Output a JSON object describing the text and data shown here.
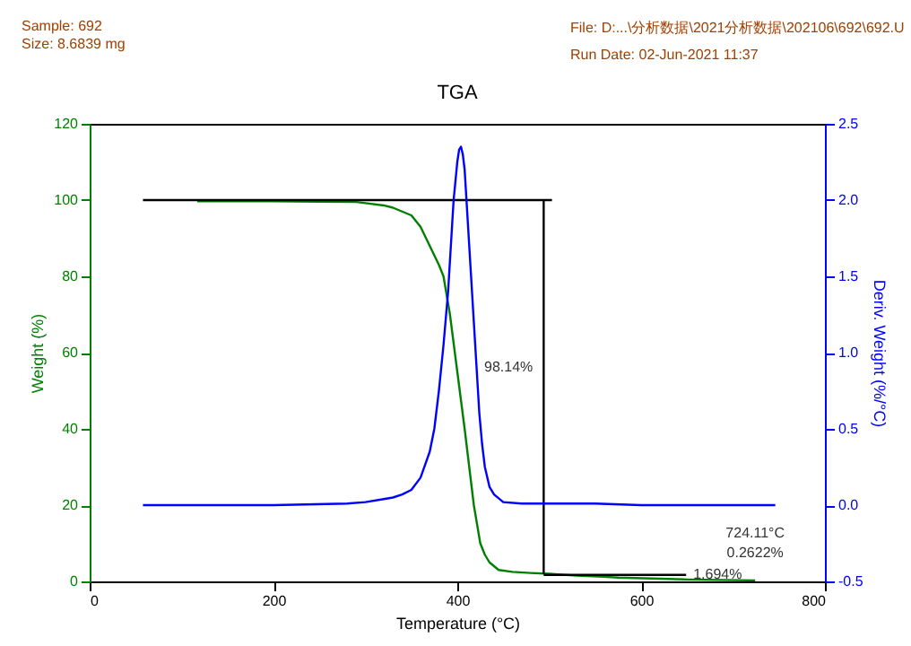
{
  "chart_data": {
    "type": "line",
    "title": "TGA",
    "xlabel": "Temperature (°C)",
    "ylabel": "Weight (%)",
    "y2label": "Deriv. Weight (%/°C)",
    "xlim": [
      0,
      800
    ],
    "xticks": [
      0,
      200,
      400,
      600,
      800
    ],
    "ylim": [
      0,
      120
    ],
    "yticks": [
      0,
      20,
      40,
      60,
      80,
      100,
      120
    ],
    "y2lim": [
      -0.5,
      2.5
    ],
    "y2ticks": [
      {
        "value": -0.5,
        "label": "-0.5"
      },
      {
        "value": 0,
        "label": "0.0"
      },
      {
        "value": 0.5,
        "label": "0.5"
      },
      {
        "value": 1,
        "label": "1.0"
      },
      {
        "value": 1.5,
        "label": "1.5"
      },
      {
        "value": 2,
        "label": "2.0"
      },
      {
        "value": 2.5,
        "label": "2.5"
      }
    ],
    "grid": false,
    "series": [
      {
        "color": "#008000",
        "x": [
          117,
          200,
          250,
          290,
          300,
          320,
          330,
          340,
          350,
          360,
          370,
          380,
          385,
          392,
          400,
          408,
          413,
          418,
          425,
          430,
          435,
          445,
          460,
          480,
          500,
          530,
          560,
          575,
          650,
          724.11
        ],
        "values": [
          99.7,
          99.7,
          99.6,
          99.5,
          99.2,
          98.6,
          98,
          97,
          96,
          93,
          88,
          83,
          80,
          70,
          55,
          40,
          30,
          20,
          10,
          7,
          5,
          3,
          2.5,
          2.2,
          2,
          1.5,
          1.2,
          1,
          0.5,
          0.2622
        ]
      },
      {
        "color": "#0000ff",
        "axis": "y2",
        "x": [
          58,
          100,
          200,
          280,
          300,
          320,
          330,
          340,
          350,
          360,
          370,
          375,
          380,
          385,
          390,
          393,
          396,
          400,
          402,
          404,
          406,
          408,
          410,
          412,
          415,
          418,
          421,
          424,
          427,
          430,
          435,
          440,
          450,
          470,
          500,
          550,
          600,
          650,
          700,
          746
        ],
        "values": [
          0,
          0,
          0,
          0.01,
          0.02,
          0.04,
          0.05,
          0.07,
          0.1,
          0.18,
          0.35,
          0.5,
          0.75,
          1.05,
          1.4,
          1.7,
          2.0,
          2.25,
          2.33,
          2.35,
          2.3,
          2.2,
          2.0,
          1.8,
          1.5,
          1.2,
          0.9,
          0.6,
          0.4,
          0.25,
          0.12,
          0.07,
          0.02,
          0.01,
          0.01,
          0.01,
          0,
          0,
          0,
          0
        ]
      },
      {
        "color": "#000000",
        "x": [
          58,
          503
        ],
        "values": [
          100,
          100
        ]
      },
      {
        "color": "#000000",
        "x": [
          494,
          494
        ],
        "values": [
          100,
          1.9
        ]
      },
      {
        "color": "#000000",
        "x": [
          494,
          649
        ],
        "values": [
          1.7,
          1.7
        ]
      }
    ],
    "annotations": [
      "Sample: 692",
      "Size: 8.6839 mg",
      "File: D:...\\分析数据\\2021分析数据\\202106\\692\\692.U",
      "Run Date: 02-Jun-2021 11:37",
      {
        "text": "98.14%",
        "x": 494,
        "y": 56
      },
      {
        "text": "1.694%",
        "x": 649,
        "y": 1.7
      },
      {
        "text": "724.11°C",
        "x": 724.11,
        "y": 0.2622
      },
      {
        "text": "0.2622%",
        "x": 724.11,
        "y": 0.2622
      }
    ]
  }
}
